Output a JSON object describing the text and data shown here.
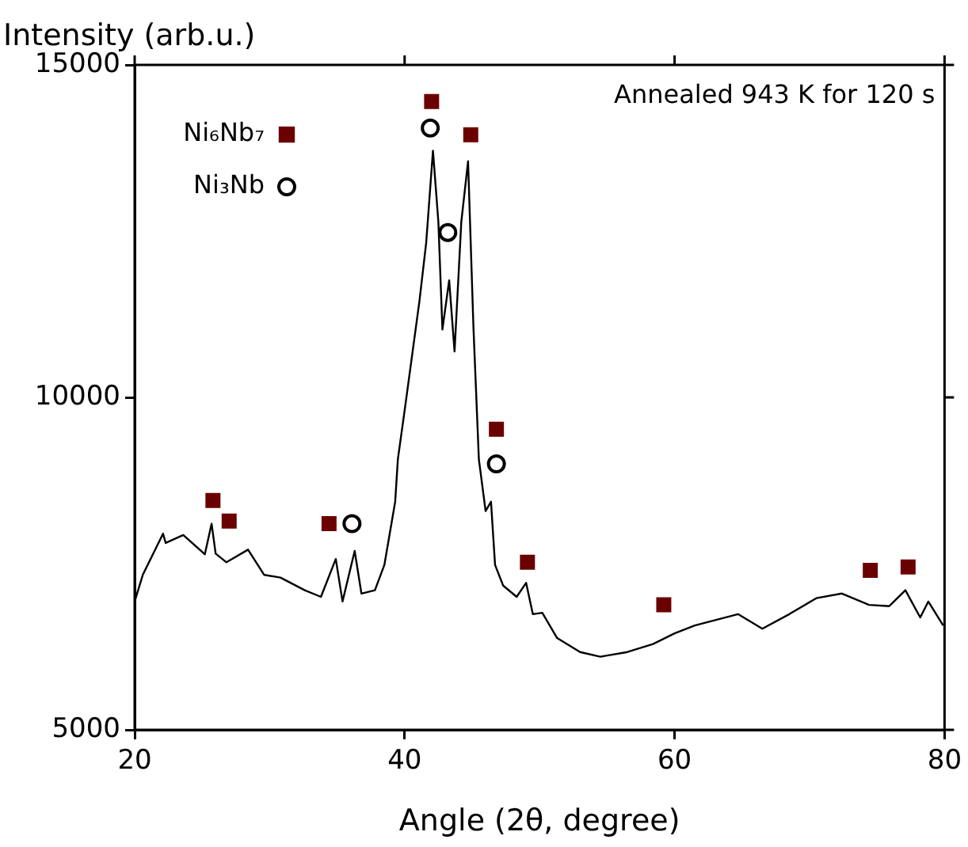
{
  "chart_data": {
    "type": "line",
    "xlabel": "Angle (2θ, degree)",
    "ylabel": "Intensity (arb.u.)",
    "xlim": [
      20,
      80
    ],
    "xticks": [
      20,
      40,
      60,
      80
    ],
    "ylim": [
      5000,
      15000
    ],
    "yticks": [
      5000,
      10000,
      15000
    ],
    "grid": false,
    "legend": "top left",
    "annotations": [
      "Annealed 943 K for 120 s"
    ],
    "series": [
      {
        "color": "#000000",
        "marker": "none",
        "x": [
          20.0,
          20.6,
          22.1,
          22.3,
          23.6,
          25.2,
          25.7,
          26.0,
          26.8,
          28.4,
          29.6,
          30.8,
          32.6,
          33.8,
          34.9,
          35.4,
          36.3,
          36.8,
          37.8,
          38.5,
          39.3,
          39.5,
          40.1,
          41.1,
          41.6,
          42.1,
          42.5,
          42.8,
          43.3,
          43.7,
          44.2,
          44.7,
          45.1,
          45.5,
          46.0,
          46.4,
          46.7,
          47.3,
          48.3,
          49.0,
          49.5,
          50.2,
          51.3,
          53.0,
          54.5,
          56.5,
          58.4,
          60.0,
          61.5,
          64.7,
          66.5,
          68.5,
          70.5,
          72.4,
          74.4,
          75.9,
          77.1,
          78.2,
          78.8,
          79.9
        ],
        "values": [
          6930,
          7330,
          7950,
          7810,
          7930,
          7640,
          8100,
          7650,
          7520,
          7710,
          7330,
          7290,
          7100,
          7000,
          7570,
          6930,
          7690,
          7050,
          7100,
          7480,
          8430,
          9070,
          9950,
          11450,
          12330,
          13710,
          12640,
          11020,
          11760,
          10690,
          12640,
          13550,
          11050,
          9070,
          8290,
          8430,
          7480,
          7170,
          7000,
          7210,
          6740,
          6760,
          6380,
          6170,
          6100,
          6170,
          6290,
          6450,
          6570,
          6740,
          6520,
          6740,
          6980,
          7050,
          6880,
          6860,
          7100,
          6690,
          6930,
          6570
        ]
      },
      {
        "type": "scatter",
        "name": "Ni₆Nb₇",
        "color": "#6b0000",
        "marker": "square",
        "x": [
          25.8,
          27.0,
          34.4,
          42.0,
          44.9,
          46.8,
          49.1,
          59.2,
          74.5,
          77.3
        ],
        "values": [
          8450,
          8140,
          8100,
          14450,
          13950,
          9520,
          7520,
          6880,
          7400,
          7450
        ]
      },
      {
        "type": "scatter",
        "name": "Ni₃Nb",
        "color": "#000000",
        "marker": "circle",
        "x": [
          36.1,
          41.9,
          43.2,
          46.8
        ],
        "values": [
          8100,
          14050,
          12480,
          9000
        ]
      }
    ]
  }
}
